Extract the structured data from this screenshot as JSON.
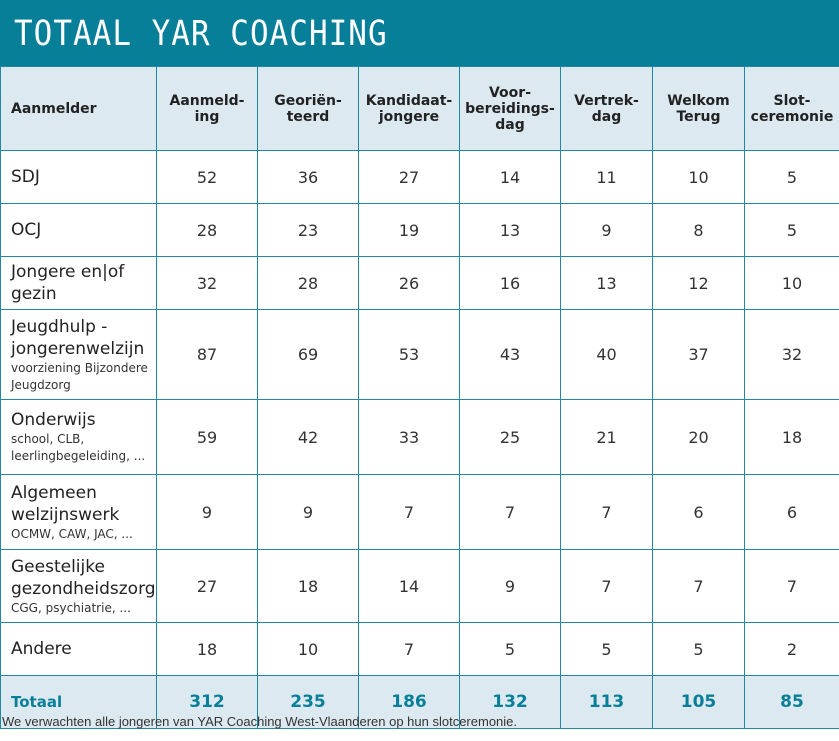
{
  "title": "TOTAAL YAR COACHING",
  "headers": [
    [
      "Aanmelder"
    ],
    [
      "Aanmeld-",
      "ing"
    ],
    [
      "Georiën-",
      "teerd"
    ],
    [
      "Kandidaat-",
      "jongere"
    ],
    [
      "Voor-",
      "bereidings-",
      "dag"
    ],
    [
      "Vertrek-",
      "dag"
    ],
    [
      "Welkom",
      "Terug"
    ],
    [
      "Slot-",
      "ceremonie"
    ]
  ],
  "rows": [
    {
      "label": [
        "SDJ"
      ],
      "sub": [],
      "values": [
        "52",
        "36",
        "27",
        "14",
        "11",
        "10",
        "5"
      ]
    },
    {
      "label": [
        "OCJ"
      ],
      "sub": [],
      "values": [
        "28",
        "23",
        "19",
        "13",
        "9",
        "8",
        "5"
      ]
    },
    {
      "label": [
        "Jongere en|of",
        "gezin"
      ],
      "sub": [],
      "values": [
        "32",
        "28",
        "26",
        "16",
        "13",
        "12",
        "10"
      ]
    },
    {
      "label": [
        "Jeugdhulp -",
        "jongerenwelzijn"
      ],
      "sub": [
        "voorziening Bijzondere",
        "Jeugdzorg"
      ],
      "values": [
        "87",
        "69",
        "53",
        "43",
        "40",
        "37",
        "32"
      ]
    },
    {
      "label": [
        "Onderwijs"
      ],
      "sub": [
        "school, CLB,",
        "leerlingbegeleiding, ..."
      ],
      "values": [
        "59",
        "42",
        "33",
        "25",
        "21",
        "20",
        "18"
      ]
    },
    {
      "label": [
        "Algemeen",
        "welzijnswerk"
      ],
      "sub": [
        "OCMW, CAW, JAC, ..."
      ],
      "values": [
        "9",
        "9",
        "7",
        "7",
        "7",
        "6",
        "6"
      ]
    },
    {
      "label": [
        "Geestelijke",
        "gezondheidszorg"
      ],
      "sub": [
        "CGG, psychiatrie, ..."
      ],
      "values": [
        "27",
        "18",
        "14",
        "9",
        "7",
        "7",
        "7"
      ]
    },
    {
      "label": [
        "Andere"
      ],
      "sub": [],
      "values": [
        "18",
        "10",
        "7",
        "5",
        "5",
        "5",
        "2"
      ]
    }
  ],
  "total": {
    "label": "Totaal",
    "values": [
      "312",
      "235",
      "186",
      "132",
      "113",
      "105",
      "85"
    ]
  },
  "footnote": "We verwachten alle jongeren van YAR Coaching West-Vlaanderen op hun slotceremonie.",
  "colors": {
    "banner": "#087f99",
    "header_bg": "#dce9f0",
    "border": "#1f87a0",
    "total_text": "#087f99"
  }
}
